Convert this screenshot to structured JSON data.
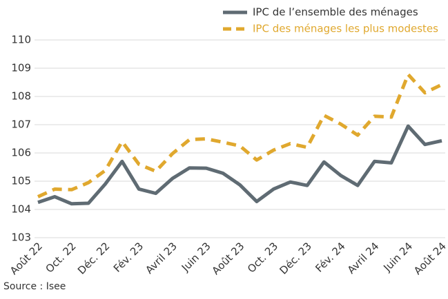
{
  "chart_data": {
    "type": "line",
    "categories": [
      "Août 22",
      null,
      "Oct. 22",
      null,
      "Déc. 22",
      null,
      "Fév. 23",
      null,
      "Avril 23",
      null,
      "Juin 23",
      null,
      "Août 23",
      null,
      "Oct. 23",
      null,
      "Déc. 23",
      null,
      "Fév. 24",
      null,
      "Avril 24",
      null,
      "Juin 24",
      null,
      "Août 24"
    ],
    "series": [
      {
        "name": "IPC de l’ensemble des ménages",
        "color": "#5f6b73",
        "dash": false,
        "values": [
          104.25,
          104.45,
          104.2,
          104.22,
          104.9,
          105.7,
          104.72,
          104.57,
          105.1,
          105.47,
          105.46,
          105.28,
          104.87,
          104.28,
          104.72,
          104.97,
          104.85,
          105.68,
          105.2,
          104.85,
          105.7,
          105.65,
          106.95,
          106.3,
          106.43
        ]
      },
      {
        "name": "IPC des ménages les plus modestes",
        "color": "#e0a82e",
        "dash": true,
        "values": [
          104.45,
          104.72,
          104.7,
          104.95,
          105.38,
          106.4,
          105.6,
          105.35,
          105.98,
          106.47,
          106.5,
          106.38,
          106.25,
          105.75,
          106.1,
          106.33,
          106.2,
          107.33,
          107.02,
          106.63,
          107.3,
          107.27,
          108.78,
          108.13,
          108.42
        ]
      }
    ],
    "ylim": [
      103,
      110
    ],
    "yticks": [
      103,
      104,
      105,
      106,
      107,
      108,
      109,
      110
    ],
    "grid": true,
    "legend": "top-right",
    "source": "Source : Isee"
  }
}
